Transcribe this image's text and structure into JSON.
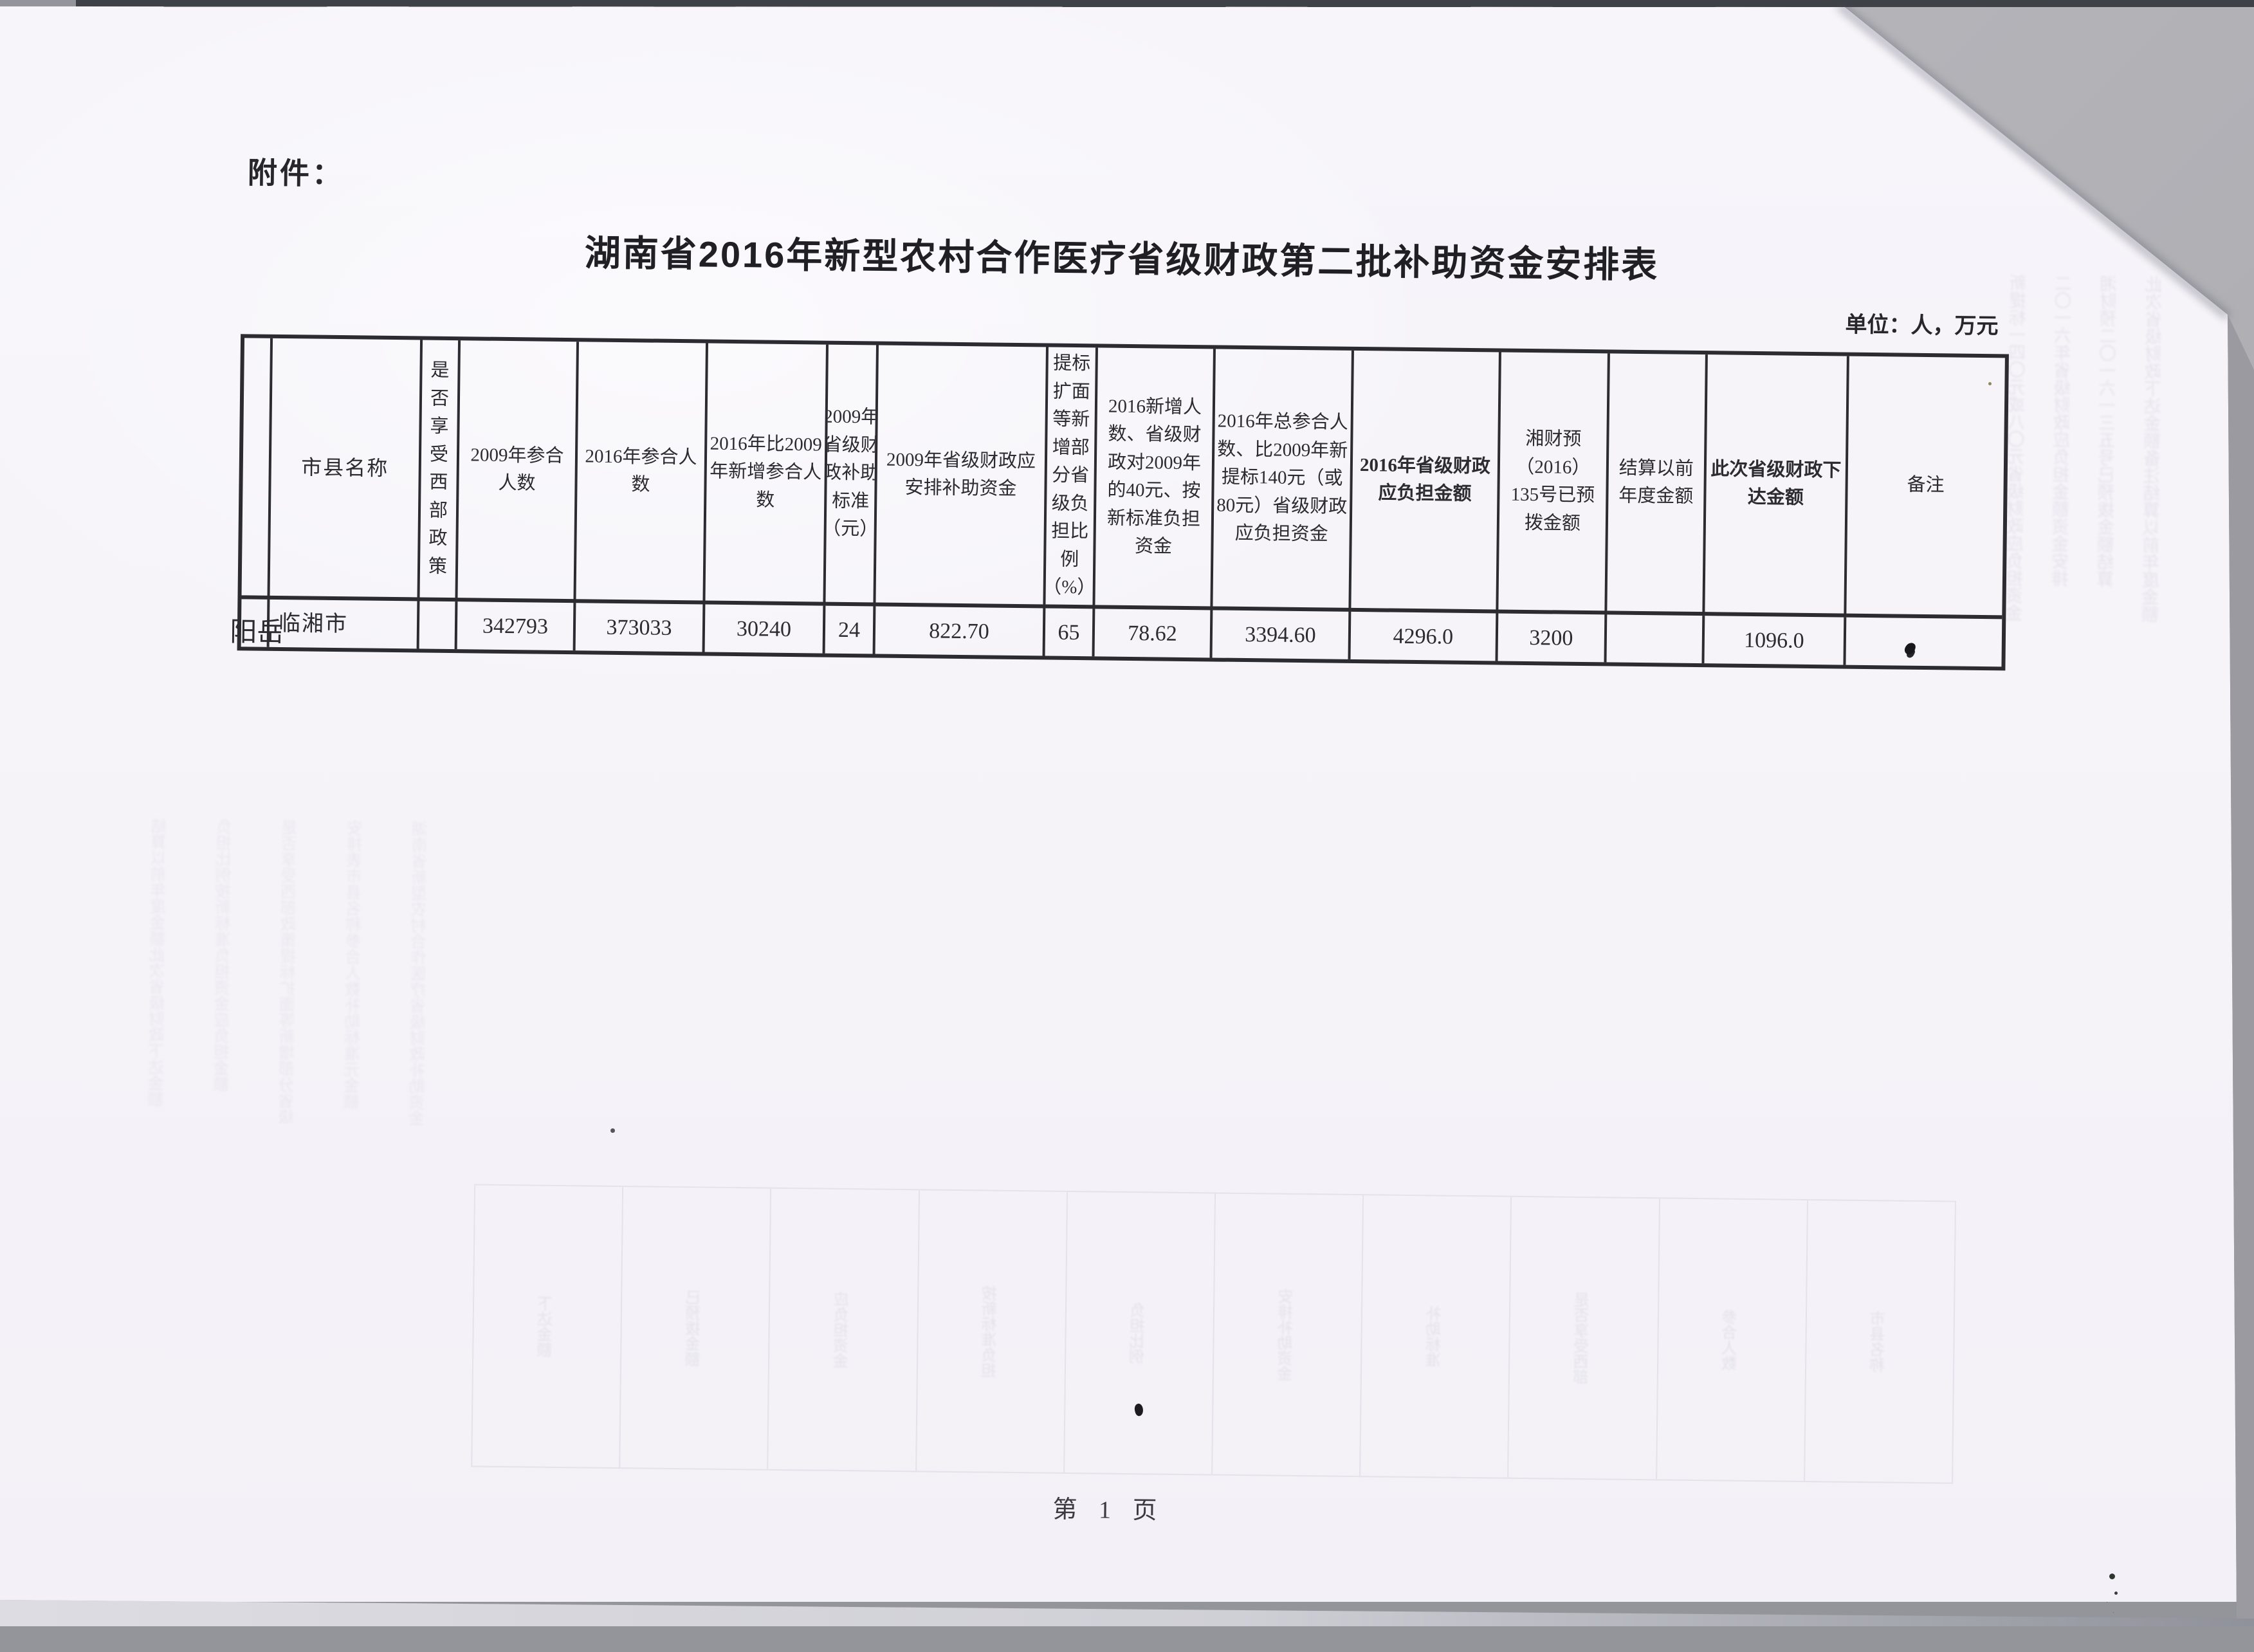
{
  "page": {
    "attachment_label": "附件：",
    "title": "湖南省2016年新型农村合作医疗省级财政第二批补助资金安排表",
    "unit_note": "单位：人，万元",
    "page_footer": "第 1 页"
  },
  "table": {
    "headers": [
      "",
      "市县名称",
      "是否享受西部政策",
      "2009年参合人数",
      "2016年参合人数",
      "2016年比2009年新增参合人数",
      "2009年省级财政补助标准（元）",
      "2009年省级财政应安排补助资金",
      "提标扩面等新增部分省级负担比例（%）",
      "2016新增人数、省级财政对2009年的40元、按新标准负担资金",
      "2016年总参合人数、比2009年新提标140元（或80元）省级财政应负担资金",
      "2016年省级财政应负担金额",
      "湘财预（2016）135号已预拨金额",
      "结算以前年度金额",
      "此次省级财政下达金额",
      "备注"
    ],
    "row": {
      "group": "岳阳",
      "values": [
        "临湘市",
        "",
        "342793",
        "373033",
        "30240",
        "24",
        "822.70",
        "65",
        "78.62",
        "3394.60",
        "4296.0",
        "3200",
        "",
        "1096.0",
        ""
      ]
    }
  },
  "artifacts": {
    "right_ghost": [
      "此次省级财政下达金额备注结算以前年度金额",
      "湘财预二〇一六一三五号已预拨金额结算",
      "二〇一六年省级财政应负担金额资金安排",
      "新提标一四〇元或八〇元省级财政应负担资金"
    ],
    "left_ghost": [
      "湖南省新型农村合作医疗省级财政补助资金",
      "安排表市县名称参合人数补助标准元金额",
      "是否享受西部政策提标扩面等新增部分省级",
      "负担比例按新标准负担资金应负担金额",
      "结算以前年度金额此次省级财政下达金额"
    ],
    "bottom_ghost": [
      "市县名称",
      "参合人数",
      "是否享受西部",
      "补助标准",
      "安排补助资金",
      "负担比例",
      "按新标准负担",
      "应负担资金",
      "已预拨金额",
      "下达金额"
    ]
  }
}
